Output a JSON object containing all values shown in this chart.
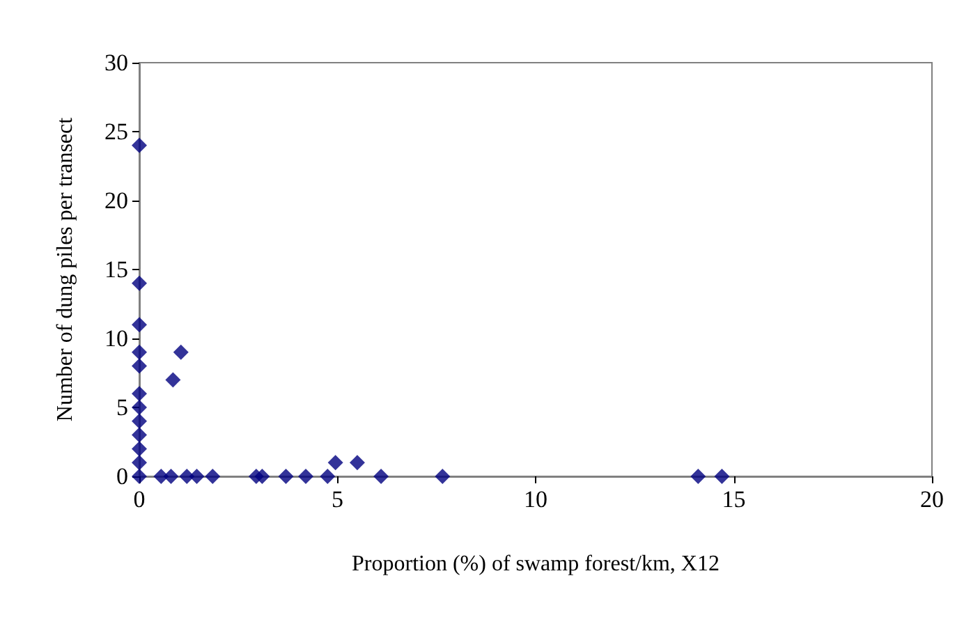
{
  "chart_data": {
    "type": "scatter",
    "xlabel": "Proportion (%) of swamp forest/km, X12",
    "ylabel": "Number of dung piles per transect",
    "x": [
      0,
      0,
      0,
      0,
      0,
      0,
      0,
      0,
      0,
      0,
      0,
      0,
      0.55,
      0.8,
      1.2,
      1.45,
      1.85,
      2.95,
      3.1,
      3.7,
      4.2,
      4.75,
      4.95,
      5.5,
      6.1,
      7.65,
      14.1,
      14.7,
      0.85,
      1.05
    ],
    "values": [
      0,
      1,
      2,
      3,
      4,
      5,
      6,
      8,
      9,
      11,
      14,
      24,
      0,
      0,
      0,
      0,
      0,
      0,
      0,
      0,
      0,
      0,
      1,
      1,
      0,
      0,
      0,
      0,
      7,
      9
    ],
    "color": "#000080",
    "marker": "diamond",
    "xlim": [
      0,
      20
    ],
    "xticks": [
      0,
      5,
      10,
      15,
      20
    ],
    "ylim": [
      0,
      30
    ],
    "yticks": [
      0,
      5,
      10,
      15,
      20,
      25,
      30
    ],
    "grid": false
  }
}
